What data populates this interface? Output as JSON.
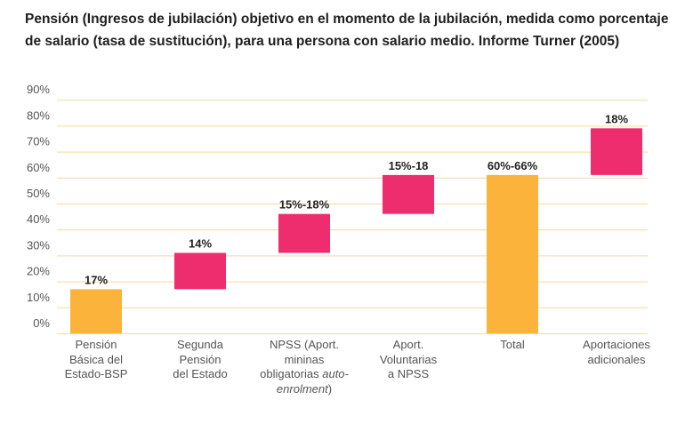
{
  "title": "Pensión (Ingresos de jubilación) objetivo en el momento de la jubilación, medida como porcentaje de salario (tasa de sustitución), para una persona con salario medio. Informe Turner (2005)",
  "colors": {
    "base": "#FBB33B",
    "increment": "#EE2D6E",
    "grid": "#F6D9A0"
  },
  "chart_data": {
    "type": "bar",
    "subtype": "waterfall",
    "title": "Pensión (Ingresos de jubilación) objetivo en el momento de la jubilación, medida como porcentaje de salario (tasa de sustitución), para una persona con salario medio. Informe Turner (2005)",
    "y_ticks": [
      "90%",
      "80%",
      "70%",
      "60%",
      "50%",
      "40%",
      "30%",
      "20%",
      "10%",
      "0%"
    ],
    "ylim": [
      0,
      90
    ],
    "grid": true,
    "bars": [
      {
        "label_lines": [
          "Pensión",
          "Básica del",
          "Estado-BSP"
        ],
        "start": 0,
        "end": 17,
        "value_label": "17%",
        "kind": "base"
      },
      {
        "label_lines": [
          "Segunda",
          "Pensión",
          "del Estado"
        ],
        "start": 17,
        "end": 31,
        "value_label": "14%",
        "kind": "increment"
      },
      {
        "label_lines": [
          "NPSS (Aport.",
          "mininas",
          "obligatorias ",
          "enrolment)"
        ],
        "label_italic": [
          "auto-",
          "enrolment"
        ],
        "start": 31,
        "end": 46,
        "value_label": "15%-18%",
        "kind": "increment"
      },
      {
        "label_lines": [
          "Aport.",
          "Voluntarias",
          "a NPSS"
        ],
        "start": 46,
        "end": 61,
        "value_label": "15%-18",
        "kind": "increment"
      },
      {
        "label_lines": [
          "Total"
        ],
        "start": 0,
        "end": 61,
        "value_label": "60%-66%",
        "kind": "base"
      },
      {
        "label_lines": [
          "Aportaciones",
          "adicionales"
        ],
        "start": 61,
        "end": 79,
        "value_label": "18%",
        "kind": "increment"
      }
    ]
  }
}
